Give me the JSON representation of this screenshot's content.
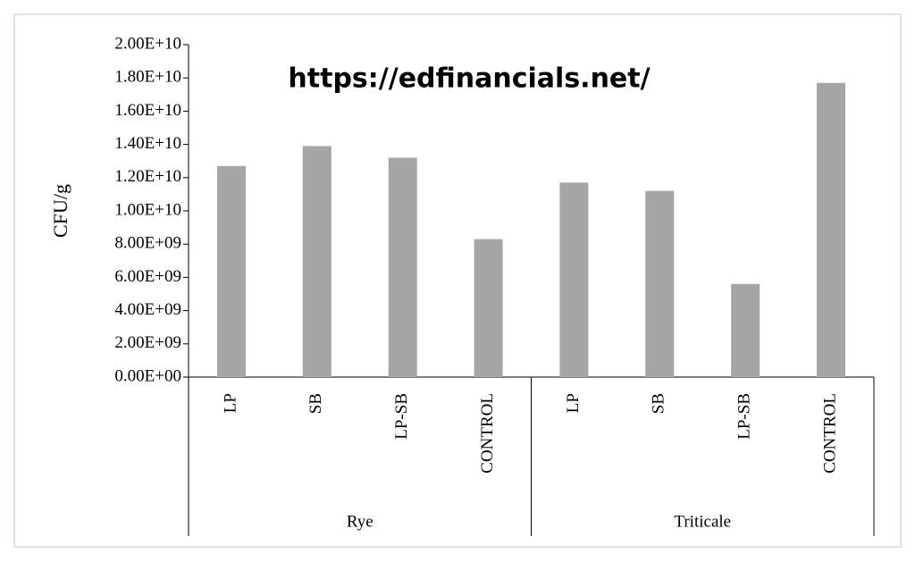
{
  "chart_data": {
    "type": "bar",
    "annotation": "https://edfinancials.net/",
    "y_label": "CFU/g",
    "color": "#a5a5a5",
    "groups": [
      {
        "name": "Rye",
        "categories": [
          "LP",
          "SB",
          "LP-SB",
          "CONTROL"
        ],
        "values": [
          12700000000,
          13900000000,
          13200000000,
          8300000000
        ]
      },
      {
        "name": "Triticale",
        "categories": [
          "LP",
          "SB",
          "LP-SB",
          "CONTROL"
        ],
        "values": [
          11700000000,
          11200000000,
          5600000000,
          17700000000
        ]
      }
    ],
    "ylim": [
      0,
      20000000000
    ],
    "yticks": [
      {
        "value": 0,
        "label": "0.00E+00"
      },
      {
        "value": 2000000000,
        "label": "2.00E+09"
      },
      {
        "value": 4000000000,
        "label": "4.00E+09"
      },
      {
        "value": 6000000000,
        "label": "6.00E+09"
      },
      {
        "value": 8000000000,
        "label": "8.00E+09"
      },
      {
        "value": 10000000000,
        "label": "1.00E+10"
      },
      {
        "value": 12000000000,
        "label": "1.20E+10"
      },
      {
        "value": 14000000000,
        "label": "1.40E+10"
      },
      {
        "value": 16000000000,
        "label": "1.60E+10"
      },
      {
        "value": 18000000000,
        "label": "1.80E+10"
      },
      {
        "value": 20000000000,
        "label": "2.00E+10"
      }
    ]
  }
}
